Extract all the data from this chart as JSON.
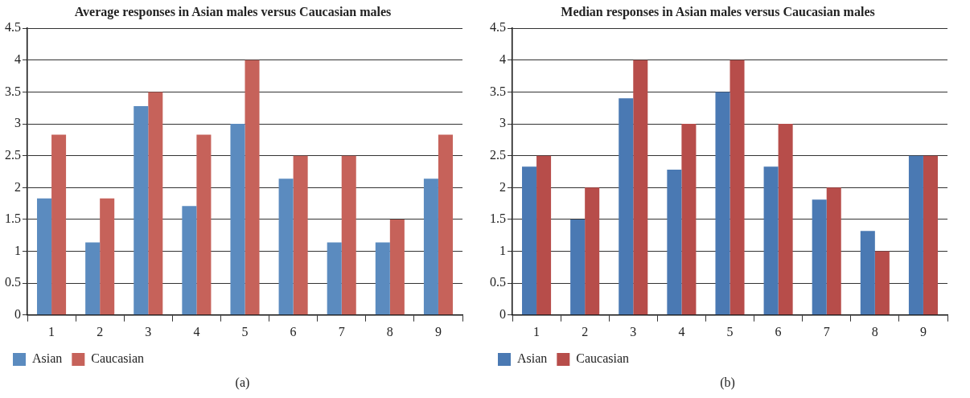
{
  "chart_data": [
    {
      "type": "bar",
      "title": "Average responses in Asian males versus Caucasian males",
      "categories": [
        "1",
        "2",
        "3",
        "4",
        "5",
        "6",
        "7",
        "8",
        "9"
      ],
      "series": [
        {
          "name": "Asian",
          "color": "#5b8bbf",
          "values": [
            1.83,
            1.14,
            3.28,
            1.71,
            3.0,
            2.14,
            1.14,
            1.14,
            2.14
          ]
        },
        {
          "name": "Caucasian",
          "color": "#c6625a",
          "values": [
            2.83,
            1.83,
            3.5,
            2.83,
            4.0,
            2.5,
            2.5,
            1.5,
            2.83
          ]
        }
      ],
      "ylim": [
        0,
        4.5
      ],
      "yticks": [
        0,
        0.5,
        1,
        1.5,
        2,
        2.5,
        3,
        3.5,
        4,
        4.5
      ],
      "grid": "y",
      "legend": "bottom left",
      "annotations": [
        "(a)"
      ]
    },
    {
      "type": "bar",
      "title": "Median responses in Asian males versus Caucasian males",
      "categories": [
        "1",
        "2",
        "3",
        "4",
        "5",
        "6",
        "7",
        "8",
        "9"
      ],
      "series": [
        {
          "name": "Asian",
          "color": "#4a79b3",
          "values": [
            2.33,
            1.5,
            3.4,
            2.28,
            3.5,
            2.33,
            1.81,
            1.32,
            2.5
          ]
        },
        {
          "name": "Caucasian",
          "color": "#b74d4a",
          "values": [
            2.5,
            2,
            4,
            3,
            4,
            3,
            2,
            1,
            2.5
          ]
        }
      ],
      "ylim": [
        0,
        4.5
      ],
      "yticks": [
        0,
        0.5,
        1,
        1.5,
        2,
        2.5,
        3,
        3.5,
        4,
        4.5
      ],
      "grid": "y",
      "legend": "bottom left",
      "annotations": [
        "(b)"
      ]
    }
  ]
}
